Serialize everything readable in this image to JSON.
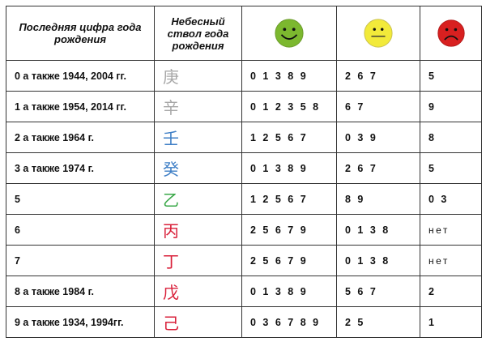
{
  "header": {
    "col1": "Последняя цифра года рождения",
    "col2": "Небесный ствол года рождения",
    "col3_icon": "smiley-happy-icon",
    "col4_icon": "smiley-neutral-icon",
    "col5_icon": "smiley-sad-icon"
  },
  "colors": {
    "happy": "#7cb82f",
    "neutral": "#f2ea3a",
    "sad": "#d82020",
    "metal": "#a8a8a8",
    "water": "#3f7fc6",
    "wood": "#3aa848",
    "fire": "#d9203a"
  },
  "rows": [
    {
      "digit": "0 а также 1944, 2004 гг.",
      "stem": "庚",
      "stem_color": "#a8a8a8",
      "good": "0 1 3 8 9",
      "neutral": "2 6 7",
      "bad": "5"
    },
    {
      "digit": "1 а также 1954, 2014 гг.",
      "stem": "辛",
      "stem_color": "#a8a8a8",
      "good": "0 1 2 3 5 8",
      "neutral": "6 7",
      "bad": "9"
    },
    {
      "digit": "2 а также 1964 г.",
      "stem": "壬",
      "stem_color": "#3f7fc6",
      "good": "1 2 5 6 7",
      "neutral": "0 3 9",
      "bad": "8"
    },
    {
      "digit": "3 а также 1974 г.",
      "stem": "癸",
      "stem_color": "#3f7fc6",
      "good": "0 1 3 8 9",
      "neutral": "2 6 7",
      "bad": "5"
    },
    {
      "digit": "5",
      "stem": "乙",
      "stem_color": "#3aa848",
      "good": "1 2 5 6 7",
      "neutral": "8 9",
      "bad": "0 3"
    },
    {
      "digit": "6",
      "stem": "丙",
      "stem_color": "#d9203a",
      "good": "2 5 6 7 9",
      "neutral": "0 1 3 8",
      "bad": "нет"
    },
    {
      "digit": "7",
      "stem": "丁",
      "stem_color": "#d9203a",
      "good": "2 5 6 7 9",
      "neutral": "0 1 3 8",
      "bad": "нет"
    },
    {
      "digit": "8  а также 1984 г.",
      "stem": "戊",
      "stem_color": "#d9203a",
      "good": "0 1 3 8 9",
      "neutral": "5 6 7",
      "bad": "2"
    },
    {
      "digit": "9  а также 1934, 1994гг.",
      "stem": "己",
      "stem_color": "#d9203a",
      "good": "0 3 6 7 8 9",
      "neutral": "2 5",
      "bad": "1"
    }
  ]
}
